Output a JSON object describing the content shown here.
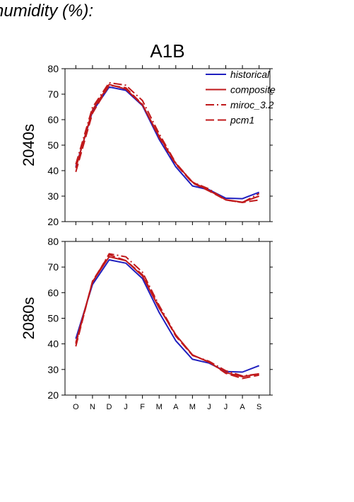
{
  "heading": "humidity (%):",
  "chart_data": {
    "type": "line",
    "title": "A1B",
    "categories": [
      "O",
      "N",
      "D",
      "J",
      "F",
      "M",
      "A",
      "M",
      "J",
      "J",
      "A",
      "S"
    ],
    "ylim": [
      20,
      80
    ],
    "yticks": [
      20,
      30,
      40,
      50,
      60,
      70,
      80
    ],
    "legend_position": "top-right",
    "panels": [
      {
        "label": "2040s",
        "series": [
          {
            "name": "historical",
            "color": "#1f1fbf",
            "dash": "solid",
            "values": [
              41.5,
              63.2,
              72.8,
              71.5,
              65.5,
              52.3,
              41.5,
              34.0,
              32.5,
              29.2,
              29.0,
              31.5
            ]
          },
          {
            "name": "composite",
            "color": "#c0191b",
            "dash": "solid",
            "values": [
              41.0,
              63.8,
              73.8,
              72.0,
              65.8,
              53.5,
              42.8,
              35.5,
              32.2,
              28.6,
              27.6,
              30.0
            ]
          },
          {
            "name": "miroc_3.2",
            "color": "#c0191b",
            "dash": "dashdot",
            "values": [
              42.5,
              64.8,
              74.5,
              73.5,
              67.5,
              54.5,
              43.0,
              35.5,
              32.8,
              28.5,
              27.5,
              31.0
            ]
          },
          {
            "name": "pcm1",
            "color": "#c0191b",
            "dash": "dash",
            "values": [
              39.5,
              62.5,
              73.5,
              72.5,
              66.0,
              53.0,
              42.5,
              35.2,
              32.0,
              28.5,
              27.5,
              28.5
            ]
          }
        ]
      },
      {
        "label": "2080s",
        "series": [
          {
            "name": "historical",
            "color": "#1f1fbf",
            "dash": "solid",
            "values": [
              42.0,
              63.2,
              72.8,
              71.5,
              65.5,
              52.3,
              41.2,
              34.0,
              32.5,
              29.2,
              29.0,
              31.5
            ]
          },
          {
            "name": "composite",
            "color": "#c0191b",
            "dash": "solid",
            "values": [
              40.5,
              64.2,
              74.0,
              72.5,
              66.5,
              54.0,
              43.5,
              35.7,
              32.8,
              28.8,
              27.2,
              28.3
            ]
          },
          {
            "name": "miroc_3.2",
            "color": "#c0191b",
            "dash": "dashdot",
            "values": [
              40.0,
              64.0,
              75.2,
              74.0,
              68.0,
              55.0,
              43.5,
              35.5,
              33.2,
              29.5,
              27.5,
              28.3
            ]
          },
          {
            "name": "pcm1",
            "color": "#c0191b",
            "dash": "dash",
            "values": [
              39.0,
              64.5,
              74.8,
              72.5,
              67.0,
              54.5,
              43.0,
              35.5,
              33.0,
              28.5,
              26.5,
              27.8
            ]
          }
        ]
      }
    ]
  }
}
